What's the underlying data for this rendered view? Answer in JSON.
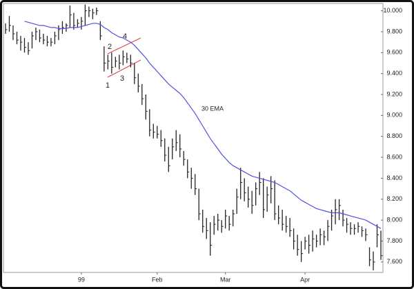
{
  "chart_data": {
    "type": "ohlc",
    "categories": [
      null,
      null,
      null,
      null,
      null,
      null,
      null,
      null,
      null,
      null,
      null,
      null,
      null,
      null,
      null,
      null,
      null,
      null,
      null,
      null,
      "99",
      null,
      null,
      null,
      null,
      null,
      null,
      null,
      null,
      null,
      null,
      null,
      null,
      null,
      null,
      null,
      null,
      null,
      null,
      null,
      "Feb",
      null,
      null,
      null,
      null,
      null,
      null,
      null,
      null,
      null,
      null,
      null,
      null,
      null,
      null,
      null,
      null,
      null,
      "Mar",
      null,
      null,
      null,
      null,
      null,
      null,
      null,
      null,
      null,
      null,
      null,
      null,
      null,
      null,
      null,
      null,
      null,
      null,
      null,
      null,
      "Apr",
      null,
      null,
      null,
      null,
      null,
      null,
      null,
      null,
      null,
      null,
      null,
      null,
      null,
      null,
      null,
      null,
      null,
      null,
      null,
      null
    ],
    "high": [
      9.88,
      9.95,
      9.86,
      9.8,
      9.76,
      9.74,
      9.7,
      9.8,
      9.84,
      9.82,
      9.78,
      9.76,
      9.74,
      9.8,
      9.86,
      9.9,
      9.88,
      10.05,
      9.98,
      9.92,
      9.94,
      10.06,
      10.04,
      10.02,
      10.03,
      9.9,
      9.66,
      9.58,
      9.6,
      9.56,
      9.58,
      9.62,
      9.6,
      9.58,
      9.5,
      9.4,
      9.3,
      9.2,
      9.06,
      8.92,
      8.9,
      8.86,
      8.78,
      8.7,
      8.78,
      8.86,
      8.82,
      8.66,
      8.58,
      8.5,
      8.44,
      8.3,
      8.1,
      8.02,
      7.98,
      8.04,
      8.06,
      8.0,
      8.1,
      8.04,
      8.1,
      8.3,
      8.5,
      8.4,
      8.32,
      8.28,
      8.36,
      8.46,
      8.4,
      8.32,
      8.42,
      8.38,
      8.14,
      8.1,
      8.04,
      8.02,
      7.92,
      7.86,
      7.8,
      7.84,
      7.86,
      7.9,
      7.86,
      7.92,
      7.9,
      8.0,
      8.1,
      8.2,
      8.2,
      8.1,
      8.02,
      7.98,
      7.96,
      7.98,
      7.94,
      7.92,
      7.74,
      7.7,
      7.96,
      7.9
    ],
    "low": [
      9.78,
      9.8,
      9.72,
      9.68,
      9.62,
      9.6,
      9.58,
      9.64,
      9.72,
      9.7,
      9.68,
      9.66,
      9.66,
      9.68,
      9.72,
      9.78,
      9.8,
      9.84,
      9.82,
      9.84,
      9.82,
      9.86,
      9.94,
      9.92,
      9.96,
      9.72,
      9.42,
      9.44,
      9.4,
      9.46,
      9.44,
      9.48,
      9.5,
      9.46,
      9.3,
      9.22,
      9.1,
      8.96,
      8.8,
      8.78,
      8.78,
      8.7,
      8.56,
      8.46,
      8.58,
      8.66,
      8.6,
      8.52,
      8.4,
      8.3,
      8.24,
      8.0,
      7.88,
      7.82,
      7.66,
      7.86,
      7.9,
      7.88,
      7.92,
      7.9,
      7.94,
      8.06,
      8.2,
      8.18,
      8.12,
      8.06,
      8.14,
      8.24,
      8.02,
      8.08,
      8.16,
      8.0,
      7.96,
      7.9,
      7.88,
      7.84,
      7.72,
      7.66,
      7.6,
      7.72,
      7.68,
      7.7,
      7.74,
      7.76,
      7.76,
      7.8,
      7.9,
      7.96,
      8.0,
      7.94,
      7.88,
      7.86,
      7.86,
      7.88,
      7.84,
      7.8,
      7.56,
      7.52,
      7.74,
      7.62
    ],
    "close": [
      9.82,
      9.86,
      9.78,
      9.72,
      9.7,
      9.65,
      9.62,
      9.76,
      9.8,
      9.74,
      9.72,
      9.7,
      9.7,
      9.76,
      9.82,
      9.84,
      9.86,
      9.96,
      9.86,
      9.88,
      9.9,
      10.0,
      10.0,
      9.98,
      10.0,
      9.76,
      9.5,
      9.52,
      9.46,
      9.52,
      9.5,
      9.56,
      9.54,
      9.5,
      9.36,
      9.28,
      9.16,
      9.04,
      8.86,
      8.84,
      8.82,
      8.76,
      8.62,
      8.52,
      8.7,
      8.74,
      8.68,
      8.58,
      8.46,
      8.4,
      8.3,
      8.06,
      7.94,
      7.9,
      7.76,
      7.96,
      8.0,
      7.94,
      8.04,
      7.96,
      8.06,
      8.22,
      8.36,
      8.26,
      8.2,
      8.14,
      8.3,
      8.36,
      8.1,
      8.24,
      8.3,
      8.06,
      8.02,
      7.96,
      7.94,
      7.9,
      7.8,
      7.72,
      7.68,
      7.8,
      7.76,
      7.82,
      7.8,
      7.86,
      7.84,
      7.94,
      8.04,
      8.1,
      8.14,
      8.0,
      7.96,
      7.92,
      7.92,
      7.94,
      7.9,
      7.86,
      7.62,
      7.6,
      7.86,
      7.66
    ],
    "color": "#222222",
    "series": [
      {
        "name": "30 EMA",
        "color": "#5050e0",
        "values": [
          null,
          null,
          null,
          null,
          null,
          9.9,
          9.89,
          9.88,
          9.87,
          9.86,
          9.86,
          9.85,
          9.84,
          9.84,
          9.83,
          9.83,
          9.83,
          9.84,
          9.84,
          9.84,
          9.85,
          9.86,
          9.87,
          9.88,
          9.88,
          9.87,
          9.84,
          9.82,
          9.79,
          9.77,
          9.75,
          9.74,
          9.72,
          9.7,
          9.67,
          9.63,
          9.59,
          9.55,
          9.5,
          9.46,
          9.42,
          9.38,
          9.34,
          9.3,
          9.27,
          9.24,
          9.21,
          9.17,
          9.12,
          9.07,
          9.02,
          8.96,
          8.9,
          8.84,
          8.78,
          8.73,
          8.68,
          8.63,
          8.59,
          8.55,
          8.52,
          8.5,
          8.48,
          8.46,
          8.44,
          8.42,
          8.41,
          8.4,
          8.39,
          8.38,
          8.37,
          8.36,
          8.34,
          8.32,
          8.3,
          8.28,
          8.25,
          8.22,
          8.19,
          8.17,
          8.15,
          8.13,
          8.11,
          8.1,
          8.09,
          8.08,
          8.07,
          8.07,
          8.07,
          8.06,
          8.05,
          8.04,
          8.03,
          8.02,
          8.01,
          8.0,
          7.98,
          7.96,
          7.94,
          7.92
        ]
      }
    ],
    "annotations": [
      "1",
      "2",
      "3",
      "4"
    ],
    "annotation_color": "#e04040",
    "ylim": [
      7.5,
      10.07
    ],
    "yticks": [
      {
        "value": 7.6,
        "label": "7.600"
      },
      {
        "value": 7.8,
        "label": "7.800"
      },
      {
        "value": 8.0,
        "label": "8.000"
      },
      {
        "value": 8.2,
        "label": "8.200"
      },
      {
        "value": 8.4,
        "label": "8.400"
      },
      {
        "value": 8.6,
        "label": "8.600"
      },
      {
        "value": 8.8,
        "label": "8.800"
      },
      {
        "value": 9.0,
        "label": "9.000"
      },
      {
        "value": 9.2,
        "label": "9.200"
      },
      {
        "value": 9.4,
        "label": "9.400"
      },
      {
        "value": 9.6,
        "label": "9.600"
      },
      {
        "value": 9.8,
        "label": "9.800"
      },
      {
        "value": 10.0,
        "label": "10.000"
      }
    ]
  }
}
